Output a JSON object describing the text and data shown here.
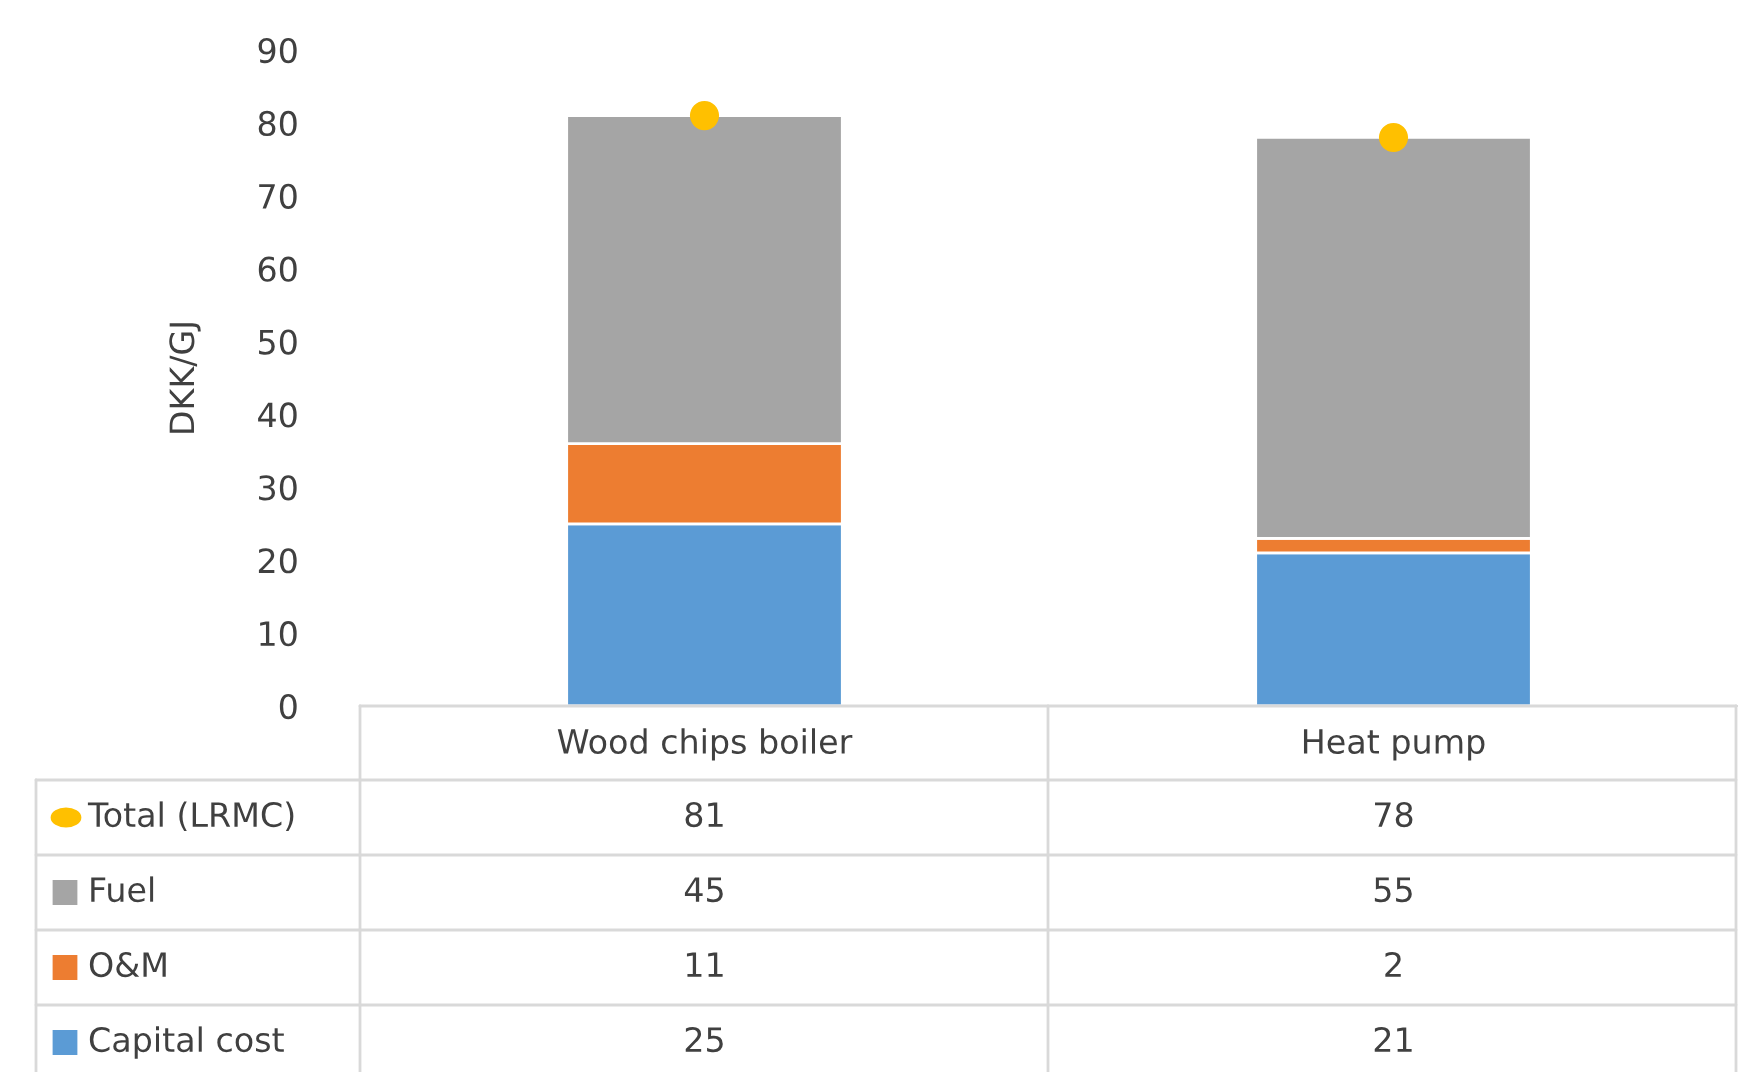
{
  "chart_data": {
    "type": "bar",
    "stacked": true,
    "ylabel": "DKK/GJ",
    "categories": [
      "Wood chips boiler",
      "Heat pump"
    ],
    "series": [
      {
        "name": "Capital cost",
        "color": "#5b9bd5",
        "values": [
          25,
          21
        ]
      },
      {
        "name": "O&M",
        "color": "#ed7d31",
        "values": [
          11,
          2
        ]
      },
      {
        "name": "Fuel",
        "color": "#a5a5a5",
        "values": [
          45,
          55
        ]
      },
      {
        "name": "Total (LRMC)",
        "type": "scatter",
        "color": "#ffc000",
        "marker": "circle",
        "x": [
          "Wood chips boiler",
          "Heat pump"
        ],
        "values": [
          81,
          78
        ]
      }
    ],
    "ylim": [
      0,
      90
    ],
    "yticks": [
      0,
      10,
      20,
      30,
      40,
      50,
      60,
      70,
      80,
      90
    ],
    "grid": false,
    "data_labels": true,
    "legend": "bottom"
  }
}
